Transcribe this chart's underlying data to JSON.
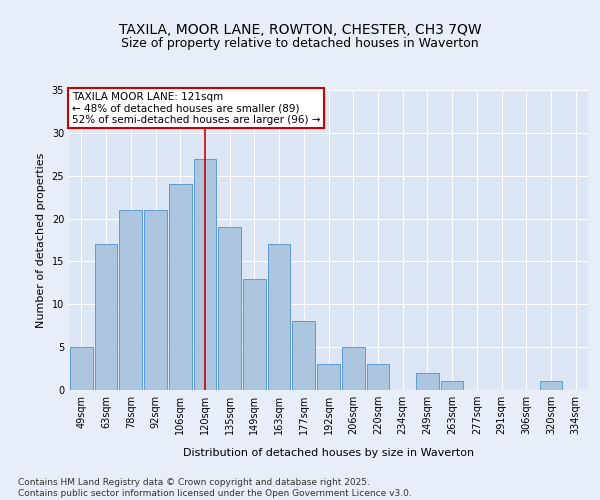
{
  "title": "TAXILA, MOOR LANE, ROWTON, CHESTER, CH3 7QW",
  "subtitle": "Size of property relative to detached houses in Waverton",
  "xlabel": "Distribution of detached houses by size in Waverton",
  "ylabel": "Number of detached properties",
  "categories": [
    "49sqm",
    "63sqm",
    "78sqm",
    "92sqm",
    "106sqm",
    "120sqm",
    "135sqm",
    "149sqm",
    "163sqm",
    "177sqm",
    "192sqm",
    "206sqm",
    "220sqm",
    "234sqm",
    "249sqm",
    "263sqm",
    "277sqm",
    "291sqm",
    "306sqm",
    "320sqm",
    "334sqm"
  ],
  "values": [
    5,
    17,
    21,
    21,
    24,
    27,
    19,
    13,
    17,
    8,
    3,
    5,
    3,
    0,
    2,
    1,
    0,
    0,
    0,
    1,
    0
  ],
  "bar_color": "#adc6e0",
  "bar_edge_color": "#5b9bd5",
  "background_color": "#e8eef7",
  "plot_bg_color": "#dce6f4",
  "grid_color": "#ffffff",
  "vline_x": 5,
  "vline_color": "#cc0000",
  "annotation_text": "TAXILA MOOR LANE: 121sqm\n← 48% of detached houses are smaller (89)\n52% of semi-detached houses are larger (96) →",
  "annotation_box_color": "#ffffff",
  "annotation_box_edge_color": "#cc0000",
  "ylim": [
    0,
    35
  ],
  "yticks": [
    0,
    5,
    10,
    15,
    20,
    25,
    30,
    35
  ],
  "footer": "Contains HM Land Registry data © Crown copyright and database right 2025.\nContains public sector information licensed under the Open Government Licence v3.0.",
  "title_fontsize": 10,
  "subtitle_fontsize": 9,
  "xlabel_fontsize": 8,
  "ylabel_fontsize": 8,
  "tick_fontsize": 7,
  "annotation_fontsize": 7.5,
  "footer_fontsize": 6.5
}
